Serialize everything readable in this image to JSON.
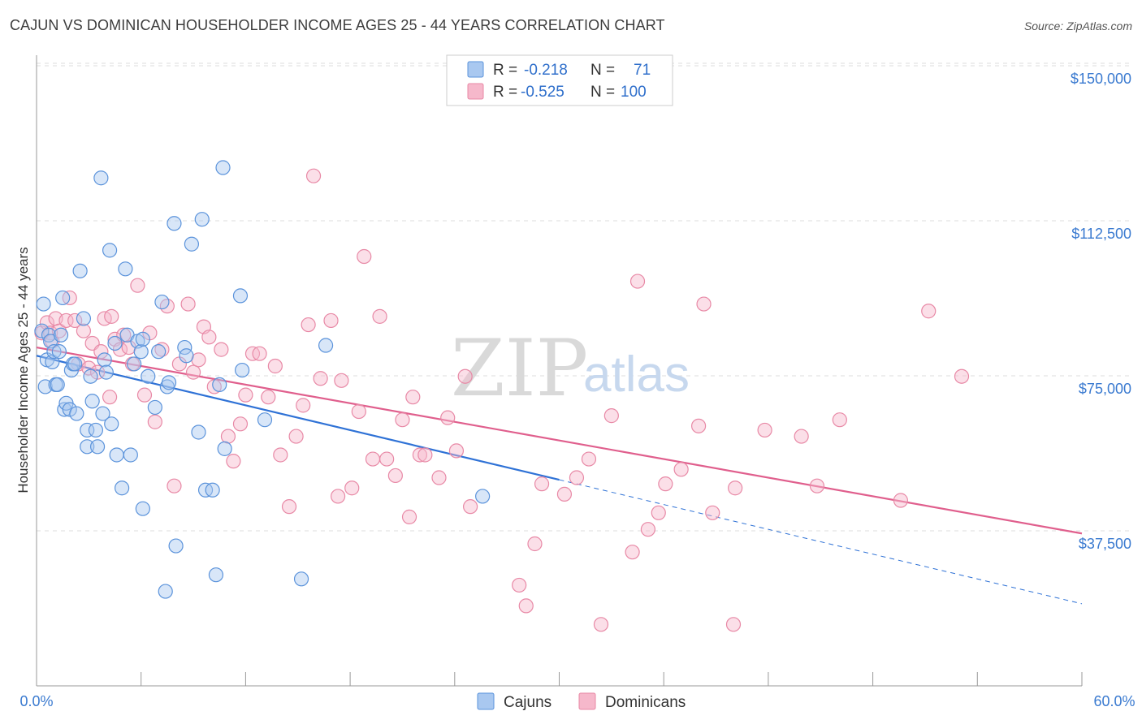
{
  "title": "CAJUN VS DOMINICAN HOUSEHOLDER INCOME AGES 25 - 44 YEARS CORRELATION CHART",
  "source": "Source: ZipAtlas.com",
  "watermark": {
    "zip": "ZIP",
    "atlas": "atlas"
  },
  "colors": {
    "cajun_fill": "#a9c8f0",
    "cajun_stroke": "#5b93db",
    "cajun_line": "#2f72d6",
    "dominican_fill": "#f6b8cb",
    "dominican_stroke": "#e889a6",
    "dominican_line": "#e05f8d",
    "tick_label": "#3a7ad0",
    "grid": "#dddddd"
  },
  "legend": {
    "rows": [
      {
        "r_label": "R =",
        "r_value": "-0.218",
        "n_label": "N =",
        "n_value": "71"
      },
      {
        "r_label": "R =",
        "r_value": "-0.525",
        "n_label": "N =",
        "n_value": "100"
      }
    ]
  },
  "chart_data": {
    "type": "scatter",
    "title": "CAJUN VS DOMINICAN HOUSEHOLDER INCOME AGES 25 - 44 YEARS CORRELATION CHART",
    "xlabel": "",
    "ylabel": "Householder Income Ages 25 - 44 years",
    "xlim": [
      0,
      60
    ],
    "ylim": [
      0,
      155000
    ],
    "x_tick_labels": [
      "0.0%",
      "60.0%"
    ],
    "y_ticks": [
      37500,
      75000,
      112500,
      150000
    ],
    "y_tick_labels": [
      "$37,500",
      "$75,000",
      "$112,500",
      "$150,000"
    ],
    "grid": true,
    "legend_position": "top-center",
    "series": [
      {
        "name": "Cajuns",
        "r": -0.218,
        "n": 71,
        "trend": {
          "x0": 0,
          "y0": 83000,
          "x1": 30,
          "y1": 53000,
          "x_dashed_end": 60,
          "y_dashed_end": 23000
        },
        "points": [
          [
            0.3,
            89000
          ],
          [
            0.4,
            95500
          ],
          [
            0.5,
            75500
          ],
          [
            0.6,
            82000
          ],
          [
            0.7,
            88000
          ],
          [
            0.8,
            86500
          ],
          [
            0.9,
            81500
          ],
          [
            1.0,
            84000
          ],
          [
            1.1,
            76000
          ],
          [
            1.2,
            76000
          ],
          [
            1.4,
            88000
          ],
          [
            1.5,
            97000
          ],
          [
            1.6,
            70000
          ],
          [
            1.7,
            71500
          ],
          [
            1.9,
            70000
          ],
          [
            2.0,
            79500
          ],
          [
            2.1,
            81000
          ],
          [
            2.3,
            69000
          ],
          [
            2.5,
            103500
          ],
          [
            2.7,
            92000
          ],
          [
            2.9,
            61000
          ],
          [
            2.9,
            65000
          ],
          [
            3.1,
            78000
          ],
          [
            3.2,
            72000
          ],
          [
            3.4,
            65000
          ],
          [
            3.5,
            61000
          ],
          [
            3.7,
            126000
          ],
          [
            3.8,
            69000
          ],
          [
            3.9,
            82000
          ],
          [
            4.0,
            79000
          ],
          [
            4.2,
            108500
          ],
          [
            4.3,
            66500
          ],
          [
            4.5,
            86000
          ],
          [
            4.6,
            59000
          ],
          [
            4.9,
            51000
          ],
          [
            5.1,
            104000
          ],
          [
            5.2,
            88000
          ],
          [
            5.4,
            59000
          ],
          [
            5.6,
            81000
          ],
          [
            5.8,
            86500
          ],
          [
            6.0,
            84000
          ],
          [
            6.1,
            46000
          ],
          [
            6.4,
            78000
          ],
          [
            6.8,
            70500
          ],
          [
            7.0,
            84000
          ],
          [
            7.2,
            96000
          ],
          [
            7.4,
            26000
          ],
          [
            7.5,
            75500
          ],
          [
            7.6,
            76500
          ],
          [
            7.9,
            115000
          ],
          [
            8.0,
            37000
          ],
          [
            8.5,
            85000
          ],
          [
            8.6,
            83000
          ],
          [
            8.9,
            110000
          ],
          [
            9.3,
            64500
          ],
          [
            9.5,
            116000
          ],
          [
            9.7,
            50500
          ],
          [
            10.1,
            50500
          ],
          [
            10.3,
            30000
          ],
          [
            10.5,
            76000
          ],
          [
            10.7,
            128500
          ],
          [
            10.8,
            60500
          ],
          [
            11.7,
            97500
          ],
          [
            11.8,
            79500
          ],
          [
            13.1,
            67500
          ],
          [
            15.2,
            29000
          ],
          [
            16.6,
            85500
          ],
          [
            25.6,
            49000
          ],
          [
            1.3,
            84000
          ],
          [
            2.2,
            81000
          ],
          [
            6.1,
            87000
          ]
        ]
      },
      {
        "name": "Dominicans",
        "r": -0.525,
        "n": 100,
        "trend": {
          "x0": 0,
          "y0": 85000,
          "x1": 60,
          "y1": 40000
        },
        "points": [
          [
            0.3,
            88500
          ],
          [
            0.6,
            91000
          ],
          [
            0.8,
            88500
          ],
          [
            0.9,
            86500
          ],
          [
            1.1,
            92000
          ],
          [
            1.3,
            89000
          ],
          [
            1.7,
            91500
          ],
          [
            1.9,
            97000
          ],
          [
            2.2,
            91500
          ],
          [
            2.4,
            81000
          ],
          [
            2.7,
            89000
          ],
          [
            3.0,
            80000
          ],
          [
            3.2,
            86000
          ],
          [
            3.5,
            79000
          ],
          [
            3.7,
            84000
          ],
          [
            3.9,
            92000
          ],
          [
            4.2,
            73000
          ],
          [
            4.3,
            92500
          ],
          [
            4.5,
            87000
          ],
          [
            4.8,
            84500
          ],
          [
            5.0,
            88000
          ],
          [
            5.3,
            85000
          ],
          [
            5.5,
            81000
          ],
          [
            5.8,
            100000
          ],
          [
            6.2,
            73500
          ],
          [
            6.5,
            88500
          ],
          [
            6.8,
            67000
          ],
          [
            7.2,
            84500
          ],
          [
            7.5,
            95000
          ],
          [
            7.9,
            51500
          ],
          [
            8.2,
            81000
          ],
          [
            8.7,
            95500
          ],
          [
            9.0,
            79000
          ],
          [
            9.3,
            82000
          ],
          [
            9.6,
            90000
          ],
          [
            9.9,
            87500
          ],
          [
            10.2,
            75500
          ],
          [
            10.6,
            84500
          ],
          [
            11.0,
            63500
          ],
          [
            11.3,
            57500
          ],
          [
            11.7,
            66500
          ],
          [
            12.0,
            73500
          ],
          [
            12.4,
            83500
          ],
          [
            12.8,
            83500
          ],
          [
            13.3,
            73000
          ],
          [
            13.7,
            80500
          ],
          [
            14.0,
            59000
          ],
          [
            14.5,
            46500
          ],
          [
            14.9,
            63500
          ],
          [
            15.3,
            71000
          ],
          [
            15.6,
            90500
          ],
          [
            15.9,
            126500
          ],
          [
            16.3,
            77500
          ],
          [
            16.9,
            91500
          ],
          [
            17.3,
            49000
          ],
          [
            17.5,
            77000
          ],
          [
            18.1,
            51000
          ],
          [
            18.5,
            69500
          ],
          [
            18.8,
            107000
          ],
          [
            19.3,
            58000
          ],
          [
            19.7,
            92500
          ],
          [
            20.1,
            58000
          ],
          [
            20.6,
            54000
          ],
          [
            21.0,
            67500
          ],
          [
            21.4,
            44000
          ],
          [
            21.6,
            73000
          ],
          [
            22.0,
            59000
          ],
          [
            22.3,
            59000
          ],
          [
            23.1,
            53500
          ],
          [
            23.6,
            68000
          ],
          [
            24.1,
            60000
          ],
          [
            24.6,
            78000
          ],
          [
            24.9,
            46500
          ],
          [
            27.7,
            27500
          ],
          [
            28.1,
            22500
          ],
          [
            28.6,
            37500
          ],
          [
            29.0,
            52000
          ],
          [
            30.3,
            49500
          ],
          [
            31.0,
            53500
          ],
          [
            31.7,
            58000
          ],
          [
            32.4,
            18000
          ],
          [
            33.0,
            68500
          ],
          [
            34.2,
            35500
          ],
          [
            34.5,
            101000
          ],
          [
            35.1,
            41000
          ],
          [
            35.7,
            45000
          ],
          [
            36.1,
            52000
          ],
          [
            37.0,
            55500
          ],
          [
            38.0,
            66000
          ],
          [
            38.3,
            95500
          ],
          [
            38.8,
            45000
          ],
          [
            40.0,
            18000
          ],
          [
            40.1,
            51000
          ],
          [
            41.8,
            65000
          ],
          [
            43.9,
            63500
          ],
          [
            44.8,
            51500
          ],
          [
            46.1,
            67500
          ],
          [
            49.6,
            48000
          ],
          [
            51.2,
            93800
          ],
          [
            53.1,
            78000
          ]
        ]
      }
    ]
  }
}
